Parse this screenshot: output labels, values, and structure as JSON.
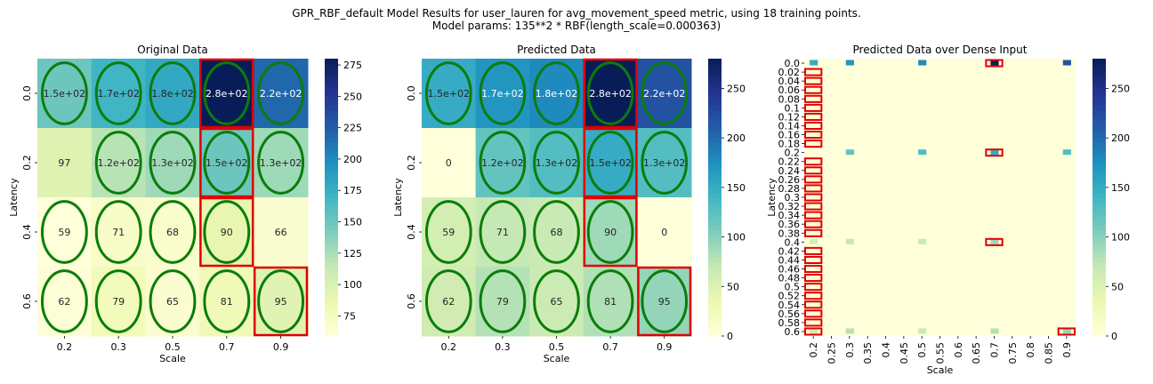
{
  "figure": {
    "title_line1": "GPR_RBF_default Model Results for user_lauren for avg_movement_speed metric, using 18 training points.",
    "title_line2": "Model params: 135**2 * RBF(length_scale=0.000363)"
  },
  "chart_data": [
    {
      "type": "heatmap",
      "title": "Original Data",
      "xlabel": "Scale",
      "ylabel": "Latency",
      "x_categories": [
        "0.2",
        "0.3",
        "0.5",
        "0.7",
        "0.9"
      ],
      "y_categories": [
        "0.0",
        "0.2",
        "0.4",
        "0.6"
      ],
      "values": [
        [
          150,
          170,
          180,
          280,
          220
        ],
        [
          97,
          120,
          130,
          150,
          130
        ],
        [
          59,
          71,
          68,
          90,
          66
        ],
        [
          62,
          79,
          65,
          81,
          95
        ]
      ],
      "annotations": [
        [
          "1.5e+02",
          "1.7e+02",
          "1.8e+02",
          "2.8e+02",
          "2.2e+02"
        ],
        [
          "97",
          "1.2e+02",
          "1.3e+02",
          "1.5e+02",
          "1.3e+02"
        ],
        [
          "59",
          "71",
          "68",
          "90",
          "66"
        ],
        [
          "62",
          "79",
          "65",
          "81",
          "95"
        ]
      ],
      "colorbar": {
        "vmin": 59,
        "vmax": 280,
        "ticks": [
          "75",
          "100",
          "125",
          "150",
          "175",
          "200",
          "225",
          "250",
          "275"
        ]
      },
      "training_ellipses": [
        [
          0,
          0
        ],
        [
          0,
          1
        ],
        [
          0,
          2
        ],
        [
          0,
          3
        ],
        [
          0,
          4
        ],
        [
          1,
          1
        ],
        [
          1,
          2
        ],
        [
          1,
          3
        ],
        [
          1,
          4
        ],
        [
          2,
          0
        ],
        [
          2,
          1
        ],
        [
          2,
          2
        ],
        [
          2,
          3
        ],
        [
          3,
          0
        ],
        [
          3,
          1
        ],
        [
          3,
          2
        ],
        [
          3,
          3
        ],
        [
          3,
          4
        ]
      ],
      "red_boxes": [
        [
          0,
          3
        ],
        [
          1,
          3
        ],
        [
          2,
          3
        ],
        [
          3,
          4
        ]
      ],
      "colormap": "YlGnBu"
    },
    {
      "type": "heatmap",
      "title": "Predicted Data",
      "xlabel": "Scale",
      "ylabel": "Latency",
      "x_categories": [
        "0.2",
        "0.3",
        "0.5",
        "0.7",
        "0.9"
      ],
      "y_categories": [
        "0.0",
        "0.2",
        "0.4",
        "0.6"
      ],
      "values": [
        [
          150,
          170,
          180,
          280,
          220
        ],
        [
          0,
          120,
          130,
          150,
          130
        ],
        [
          59,
          71,
          68,
          90,
          0
        ],
        [
          62,
          79,
          65,
          81,
          95
        ]
      ],
      "annotations": [
        [
          "1.5e+02",
          "1.7e+02",
          "1.8e+02",
          "2.8e+02",
          "2.2e+02"
        ],
        [
          "0",
          "1.2e+02",
          "1.3e+02",
          "1.5e+02",
          "1.3e+02"
        ],
        [
          "59",
          "71",
          "68",
          "90",
          "0"
        ],
        [
          "62",
          "79",
          "65",
          "81",
          "95"
        ]
      ],
      "colorbar": {
        "vmin": 0,
        "vmax": 280,
        "ticks": [
          "0",
          "50",
          "100",
          "150",
          "200",
          "250"
        ]
      },
      "training_ellipses": [
        [
          0,
          0
        ],
        [
          0,
          1
        ],
        [
          0,
          2
        ],
        [
          0,
          3
        ],
        [
          0,
          4
        ],
        [
          1,
          1
        ],
        [
          1,
          2
        ],
        [
          1,
          3
        ],
        [
          1,
          4
        ],
        [
          2,
          0
        ],
        [
          2,
          1
        ],
        [
          2,
          2
        ],
        [
          2,
          3
        ],
        [
          3,
          0
        ],
        [
          3,
          1
        ],
        [
          3,
          2
        ],
        [
          3,
          3
        ],
        [
          3,
          4
        ]
      ],
      "red_boxes": [
        [
          0,
          3
        ],
        [
          1,
          3
        ],
        [
          2,
          3
        ],
        [
          3,
          4
        ]
      ],
      "colormap": "YlGnBu"
    },
    {
      "type": "heatmap",
      "title": "Predicted Data over Dense Input",
      "xlabel": "Scale",
      "ylabel": "Latency",
      "x_categories": [
        "0.2",
        "0.25",
        "0.3",
        "0.35",
        "0.4",
        "0.45",
        "0.5",
        "0.55",
        "0.6",
        "0.65",
        "0.7",
        "0.75",
        "0.8",
        "0.85",
        "0.9"
      ],
      "y_categories": [
        "0.0",
        "0.02",
        "0.04",
        "0.06",
        "0.08",
        "0.1",
        "0.12",
        "0.14",
        "0.16",
        "0.18",
        "0.2",
        "0.22",
        "0.24",
        "0.26",
        "0.28",
        "0.3",
        "0.32",
        "0.34",
        "0.36",
        "0.38",
        "0.4",
        "0.42",
        "0.44",
        "0.46",
        "0.48",
        "0.5",
        "0.52",
        "0.54",
        "0.56",
        "0.58",
        "0.6"
      ],
      "nonzero_cells": [
        {
          "y": "0.0",
          "x": "0.2",
          "value": 150
        },
        {
          "y": "0.0",
          "x": "0.3",
          "value": 170
        },
        {
          "y": "0.0",
          "x": "0.5",
          "value": 180
        },
        {
          "y": "0.0",
          "x": "0.7",
          "value": 280
        },
        {
          "y": "0.0",
          "x": "0.9",
          "value": 220
        },
        {
          "y": "0.2",
          "x": "0.3",
          "value": 120
        },
        {
          "y": "0.2",
          "x": "0.5",
          "value": 130
        },
        {
          "y": "0.2",
          "x": "0.7",
          "value": 150
        },
        {
          "y": "0.2",
          "x": "0.9",
          "value": 130
        },
        {
          "y": "0.4",
          "x": "0.2",
          "value": 59
        },
        {
          "y": "0.4",
          "x": "0.3",
          "value": 71
        },
        {
          "y": "0.4",
          "x": "0.5",
          "value": 68
        },
        {
          "y": "0.4",
          "x": "0.7",
          "value": 90
        },
        {
          "y": "0.6",
          "x": "0.2",
          "value": 62
        },
        {
          "y": "0.6",
          "x": "0.3",
          "value": 79
        },
        {
          "y": "0.6",
          "x": "0.5",
          "value": 65
        },
        {
          "y": "0.6",
          "x": "0.7",
          "value": 81
        },
        {
          "y": "0.6",
          "x": "0.9",
          "value": 95
        }
      ],
      "red_box_cells": [
        {
          "y": "0.0",
          "x": "0.7"
        },
        {
          "y": "0.2",
          "x": "0.7"
        },
        {
          "y": "0.4",
          "x": "0.7"
        },
        {
          "y": "0.6",
          "x": "0.9"
        }
      ],
      "red_box_column": {
        "x": "0.2",
        "rows_from": "0.02",
        "rows_to": "0.6",
        "excluding": [
          "0.2",
          "0.4"
        ]
      },
      "colorbar": {
        "vmin": 0,
        "vmax": 280,
        "ticks": [
          "0",
          "50",
          "100",
          "150",
          "200",
          "250"
        ]
      },
      "colormap": "YlGnBu"
    }
  ]
}
